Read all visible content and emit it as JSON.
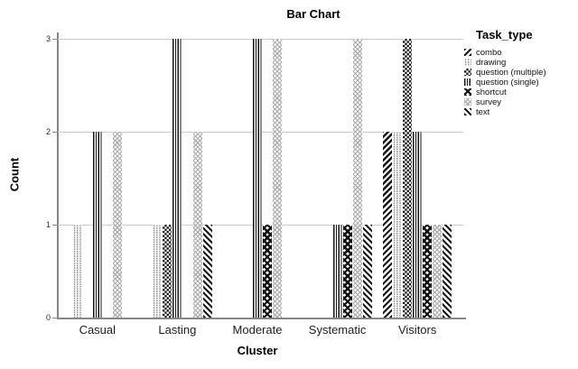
{
  "chart_data": {
    "type": "bar",
    "title": "Bar Chart",
    "xlabel": "Cluster",
    "ylabel": "Count",
    "ylim": [
      0,
      3
    ],
    "yticks": [
      0,
      1,
      2,
      3
    ],
    "grid": "horizontal",
    "legend_title": "Task_type",
    "legend_position": "right",
    "categories": [
      "Casual",
      "Lasting",
      "Moderate",
      "Systematic",
      "Visitors"
    ],
    "series": [
      {
        "name": "combo",
        "pattern": "diagonal-up",
        "values": [
          0,
          0,
          0,
          0,
          2
        ]
      },
      {
        "name": "drawing",
        "pattern": "dots-light",
        "values": [
          1,
          1,
          0,
          0,
          2
        ]
      },
      {
        "name": "question (multiple)",
        "pattern": "checkerboard",
        "values": [
          0,
          1,
          0,
          0,
          3
        ]
      },
      {
        "name": "question (single)",
        "pattern": "vertical-lines",
        "values": [
          2,
          3,
          3,
          1,
          2
        ]
      },
      {
        "name": "shortcut",
        "pattern": "diamond-dark",
        "values": [
          0,
          0,
          1,
          1,
          1
        ]
      },
      {
        "name": "survey",
        "pattern": "lattice-light",
        "values": [
          2,
          2,
          3,
          3,
          1
        ]
      },
      {
        "name": "text",
        "pattern": "diagonal-down",
        "values": [
          0,
          1,
          0,
          1,
          1
        ]
      }
    ],
    "colors": {
      "ink": "#141414",
      "gridline": "#c9c9c9",
      "axis": "#858585",
      "background": "#ffffff"
    }
  }
}
